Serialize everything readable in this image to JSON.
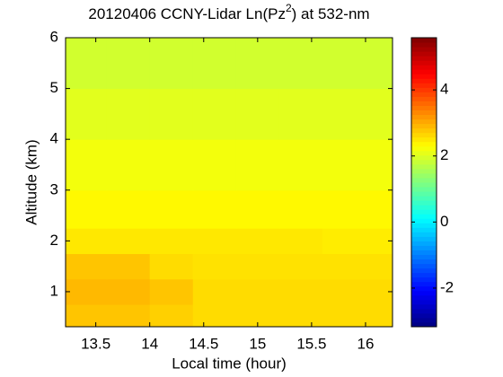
{
  "chart_data": {
    "type": "heatmap",
    "title": [
      "20120406 CCNY-Lidar Ln(Pz",
      "2",
      ") at 532-nm"
    ],
    "x_label": "Local time (hour)",
    "y_label": "Altitude (km)",
    "x_edges": [
      13.22,
      13.6,
      14.0,
      14.4,
      14.8,
      15.2,
      15.6,
      16.0,
      16.25
    ],
    "y_edges": [
      0.31,
      0.75,
      1.25,
      1.75,
      2.25,
      3,
      4,
      5,
      6
    ],
    "z": [
      [
        2.8,
        2.8,
        2.7,
        2.6,
        2.6,
        2.6,
        2.6,
        2.6
      ],
      [
        2.9,
        2.9,
        2.8,
        2.6,
        2.6,
        2.6,
        2.6,
        2.6
      ],
      [
        2.8,
        2.8,
        2.6,
        2.55,
        2.55,
        2.55,
        2.55,
        2.55
      ],
      [
        2.5,
        2.5,
        2.5,
        2.5,
        2.5,
        2.5,
        2.45,
        2.45
      ],
      [
        2.35,
        2.35,
        2.35,
        2.35,
        2.35,
        2.35,
        2.35,
        2.35
      ],
      [
        2.2,
        2.2,
        2.2,
        2.2,
        2.2,
        2.2,
        2.2,
        2.2
      ],
      [
        2.05,
        2.05,
        2.05,
        2.05,
        2.05,
        2.05,
        2.05,
        2.05
      ],
      [
        1.9,
        1.9,
        1.9,
        1.9,
        1.9,
        1.9,
        1.9,
        1.9
      ]
    ],
    "xlim": [
      13.22,
      16.25
    ],
    "xticks": [
      13.5,
      14,
      14.5,
      15,
      15.5,
      16
    ],
    "ylim": [
      0.31,
      6
    ],
    "yticks": [
      1,
      2,
      3,
      4,
      5,
      6
    ],
    "clim": [
      -3.17,
      5.58
    ],
    "cticks": [
      -2,
      0,
      2,
      4
    ],
    "colormap": "jet"
  }
}
